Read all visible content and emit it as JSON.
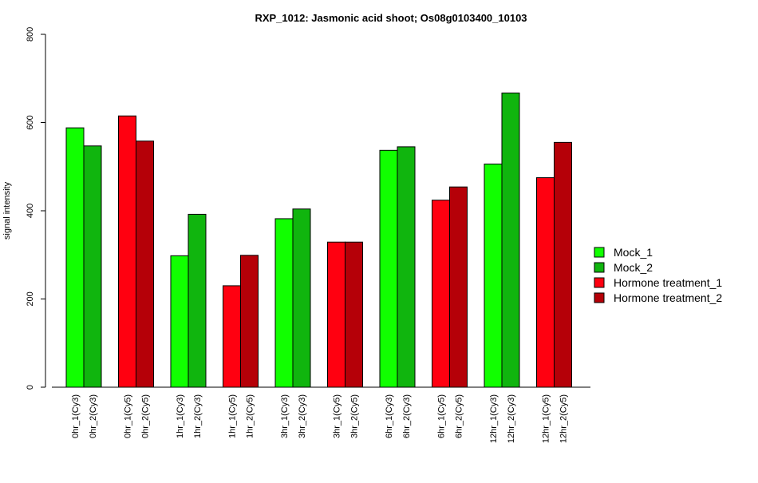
{
  "chart_data": {
    "type": "bar",
    "title": "RXP_1012: Jasmonic acid shoot; Os08g0103400_10103",
    "ylabel": "signal intensity",
    "xlabel": "",
    "ylim": [
      0,
      800
    ],
    "yticks": [
      0,
      200,
      400,
      600,
      800
    ],
    "grid": false,
    "legend_position": "right",
    "categories": [
      "0hr_1(Cy3)",
      "0hr_2(Cy3)",
      "0hr_1(Cy5)",
      "0hr_2(Cy5)",
      "1hr_1(Cy3)",
      "1hr_2(Cy3)",
      "1hr_1(Cy5)",
      "1hr_2(Cy5)",
      "3hr_1(Cy3)",
      "3hr_2(Cy3)",
      "3hr_1(Cy5)",
      "3hr_2(Cy5)",
      "6hr_1(Cy3)",
      "6hr_2(Cy3)",
      "6hr_1(Cy5)",
      "6hr_2(Cy5)",
      "12hr_1(Cy3)",
      "12hr_2(Cy3)",
      "12hr_1(Cy5)",
      "12hr_2(Cy5)"
    ],
    "values": [
      588,
      547,
      615,
      558,
      298,
      392,
      230,
      299,
      382,
      404,
      329,
      329,
      537,
      545,
      424,
      454,
      506,
      667,
      475,
      555
    ],
    "bar_series": [
      0,
      1,
      2,
      3,
      0,
      1,
      2,
      3,
      0,
      1,
      2,
      3,
      0,
      1,
      2,
      3,
      0,
      1,
      2,
      3
    ],
    "series": [
      {
        "name": "Mock_1",
        "color": "#11ff00"
      },
      {
        "name": "Mock_2",
        "color": "#10b50e"
      },
      {
        "name": "Hormone treatment_1",
        "color": "#ff0010"
      },
      {
        "name": "Hormone treatment_2",
        "color": "#b50008"
      }
    ]
  }
}
